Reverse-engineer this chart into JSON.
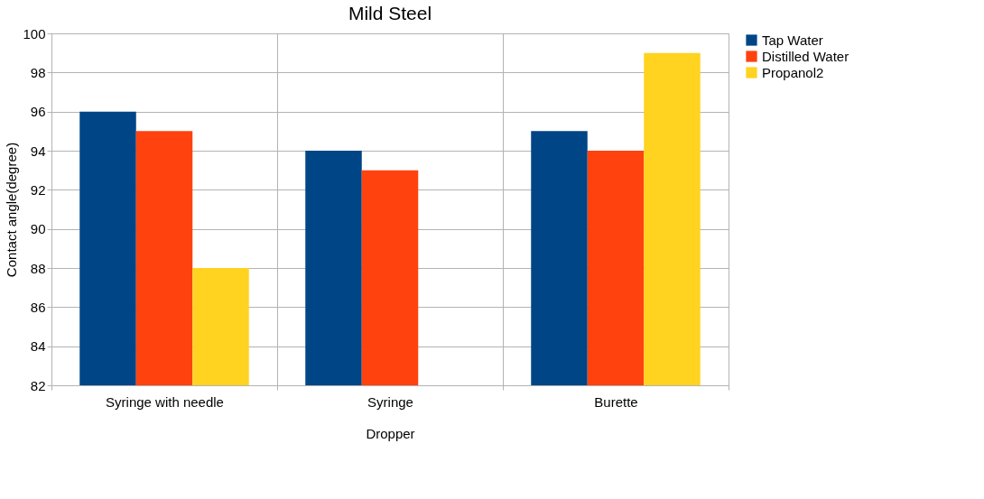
{
  "chart_data": {
    "type": "bar",
    "title": "Mild Steel",
    "xlabel": "Dropper",
    "ylabel": "Contact angle(degree)",
    "categories": [
      "Syringe with needle",
      "Syringe",
      "Burette"
    ],
    "series": [
      {
        "name": "Tap Water",
        "color": "#004586",
        "values": [
          96,
          94,
          95
        ]
      },
      {
        "name": "Distilled Water",
        "color": "#ff420e",
        "values": [
          95,
          93,
          94
        ]
      },
      {
        "name": "Propanol2",
        "color": "#ffd320",
        "values": [
          88,
          null,
          99
        ]
      }
    ],
    "ylim": [
      82,
      100
    ],
    "yticks": [
      82,
      84,
      86,
      88,
      90,
      92,
      94,
      96,
      98,
      100
    ],
    "grid": true,
    "legend": "right"
  }
}
